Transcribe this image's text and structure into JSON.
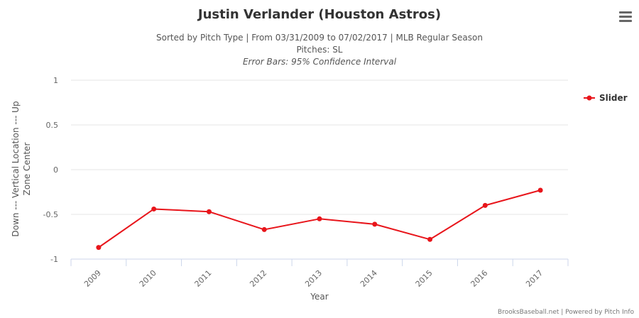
{
  "chart_data": {
    "type": "line",
    "title": "Justin Verlander (Houston Astros)",
    "subtitle_lines": [
      "Sorted by Pitch Type | From 03/31/2009 to 07/02/2017 | MLB Regular Season",
      "Pitches: SL",
      "Error Bars: 95% Confidence Interval"
    ],
    "xlabel": "Year",
    "ylabel_lines": [
      "Down --- Vertical Location --- Up",
      "Zone Center"
    ],
    "categories": [
      "2009",
      "2010",
      "2011",
      "2012",
      "2013",
      "2014",
      "2015",
      "2016",
      "2017"
    ],
    "series": [
      {
        "name": "Slider",
        "color": "#e8151b",
        "values": [
          -0.87,
          -0.44,
          -0.47,
          -0.67,
          -0.55,
          -0.61,
          -0.78,
          -0.4,
          -0.23
        ]
      }
    ],
    "ylim": [
      -1,
      1
    ],
    "yticks": [
      1,
      0.5,
      0,
      -0.5,
      -1
    ],
    "ytick_labels": [
      "1",
      "0.5",
      "0",
      "-0.5",
      "-1"
    ],
    "grid": true,
    "legend_position": "right"
  },
  "credits": "BrooksBaseball.net | Powered by Pitch Info",
  "menu_icon": "hamburger-menu-icon"
}
